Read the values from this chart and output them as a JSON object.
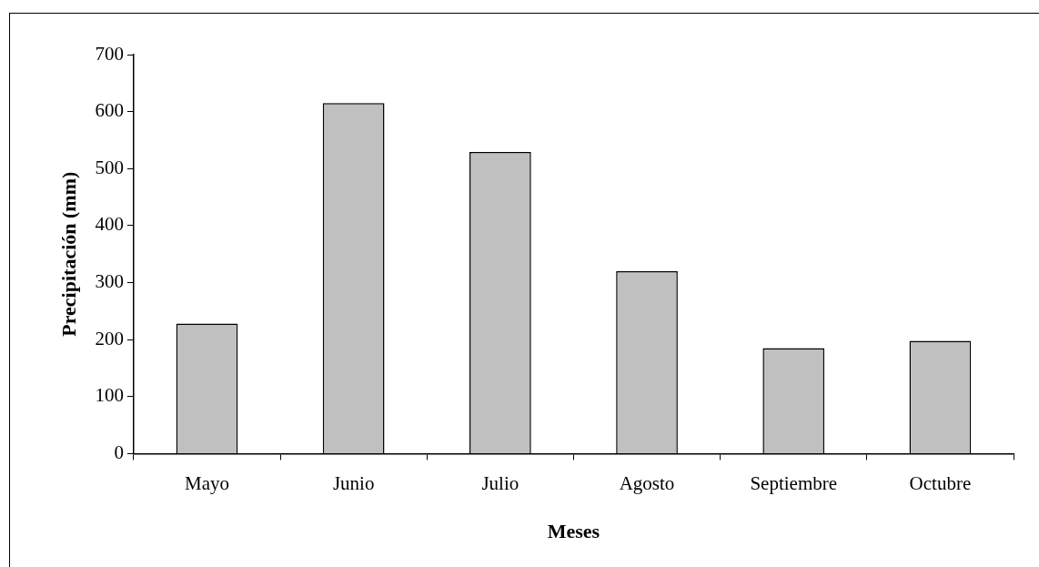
{
  "chart_data": {
    "type": "bar",
    "xlabel": "Meses",
    "ylabel": "Precipitación (mm)",
    "categories": [
      "Mayo",
      "Junio",
      "Julio",
      "Agosto",
      "Septiembre",
      "Octubre"
    ],
    "values": [
      228,
      615,
      529,
      320,
      185,
      198
    ],
    "color": "#c0c0c0",
    "ylim": [
      0,
      700
    ],
    "yticks": [
      0,
      100,
      200,
      300,
      400,
      500,
      600,
      700
    ]
  }
}
